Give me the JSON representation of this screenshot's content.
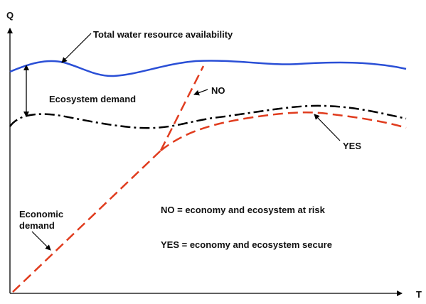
{
  "axes": {
    "y_label": "Q",
    "x_label": "T"
  },
  "labels": {
    "total_water": "Total water resource availability",
    "ecosystem_demand": "Ecosystem demand",
    "economic_demand_line1": "Economic",
    "economic_demand_line2": "demand",
    "no": "NO",
    "yes": "YES"
  },
  "legend": {
    "no_text": "NO = economy and ecosystem at risk",
    "yes_text": "YES = economy and ecosystem secure"
  },
  "colors": {
    "total_water_line": "#2a4fd6",
    "ecosystem_line": "#000000",
    "economic_line": "#e03c1e",
    "axis": "#000000"
  }
}
